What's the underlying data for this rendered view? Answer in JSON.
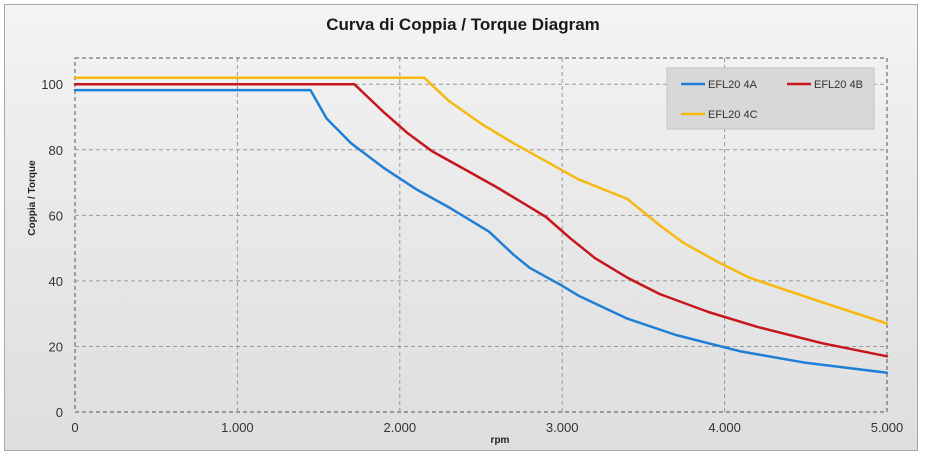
{
  "chart_data": {
    "type": "line",
    "title": "Curva di Coppia / Torque Diagram",
    "xlabel": "rpm",
    "ylabel": "Coppia / Torque",
    "xlim": [
      0,
      5000
    ],
    "ylim": [
      0,
      108
    ],
    "x_ticks": [
      0,
      1000,
      2000,
      3000,
      4000,
      5000
    ],
    "x_tick_labels": [
      "0",
      "1.000",
      "2.000",
      "3.000",
      "4.000",
      "5.000"
    ],
    "y_ticks": [
      0,
      20,
      40,
      60,
      80,
      100
    ],
    "y_tick_labels": [
      "0",
      "20",
      "40",
      "60",
      "80",
      "100"
    ],
    "grid": true,
    "legend_position": "top-right",
    "series": [
      {
        "name": "EFL20 4A",
        "color": "#1f7fd6",
        "points": [
          [
            0,
            98.2
          ],
          [
            1450,
            98.2
          ],
          [
            1550,
            89.5
          ],
          [
            1700,
            82
          ],
          [
            1900,
            74.5
          ],
          [
            2100,
            68
          ],
          [
            2300,
            62.5
          ],
          [
            2550,
            55
          ],
          [
            2700,
            48
          ],
          [
            2800,
            44
          ],
          [
            3000,
            38.5
          ],
          [
            3100,
            35.5
          ],
          [
            3400,
            28.5
          ],
          [
            3700,
            23.5
          ],
          [
            4100,
            18.5
          ],
          [
            4500,
            15
          ],
          [
            5000,
            12
          ]
        ]
      },
      {
        "name": "EFL20 4B",
        "color": "#c8161d",
        "points": [
          [
            0,
            100
          ],
          [
            1720,
            100
          ],
          [
            1900,
            91.5
          ],
          [
            2050,
            85
          ],
          [
            2200,
            79.5
          ],
          [
            2400,
            74
          ],
          [
            2600,
            68.5
          ],
          [
            2800,
            62.5
          ],
          [
            2900,
            59.5
          ],
          [
            3050,
            53
          ],
          [
            3200,
            47
          ],
          [
            3400,
            41
          ],
          [
            3600,
            36
          ],
          [
            3900,
            30.5
          ],
          [
            4200,
            26
          ],
          [
            4600,
            21
          ],
          [
            5000,
            17
          ]
        ]
      },
      {
        "name": "EFL20 4C",
        "color": "#f5b90f",
        "points": [
          [
            0,
            102
          ],
          [
            2150,
            102
          ],
          [
            2300,
            95
          ],
          [
            2500,
            88
          ],
          [
            2700,
            82
          ],
          [
            2900,
            76.5
          ],
          [
            3100,
            71
          ],
          [
            3400,
            65
          ],
          [
            3600,
            57
          ],
          [
            3750,
            51.5
          ],
          [
            3950,
            46
          ],
          [
            4150,
            41
          ],
          [
            4300,
            38.5
          ],
          [
            4600,
            33.5
          ],
          [
            5000,
            27
          ]
        ]
      }
    ]
  }
}
